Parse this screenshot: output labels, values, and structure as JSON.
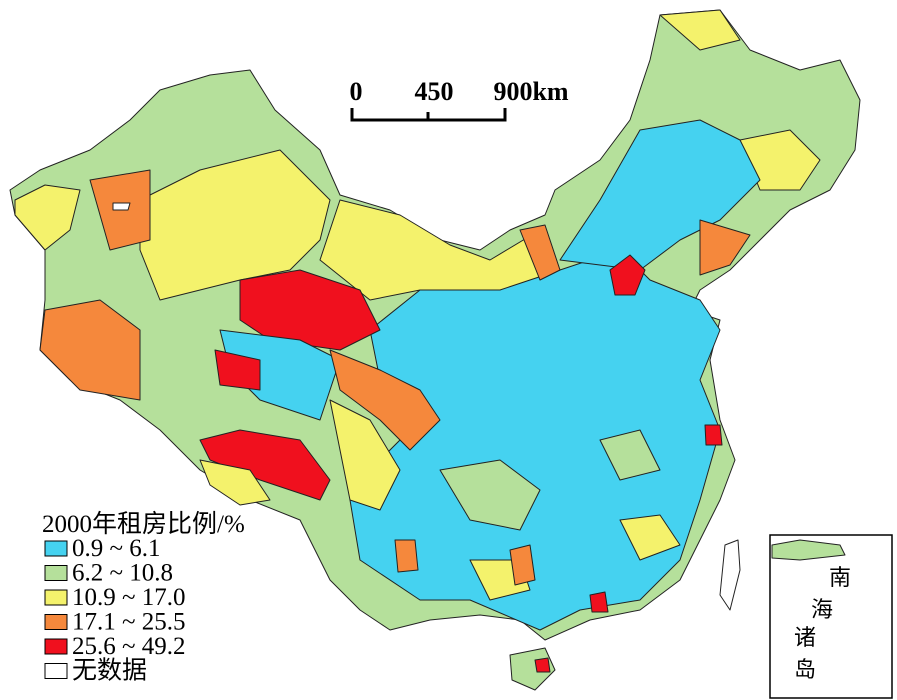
{
  "scale_bar": {
    "labels": [
      "0",
      "450",
      "900km"
    ]
  },
  "legend": {
    "title": "2000年租房比例/%",
    "items": [
      {
        "label": "0.9 ~ 6.1",
        "color": "#45d2f0"
      },
      {
        "label": "6.2 ~ 10.8",
        "color": "#b5e09b"
      },
      {
        "label": "10.9 ~ 17.0",
        "color": "#f4f26c"
      },
      {
        "label": "17.1 ~ 25.5",
        "color": "#f5883c"
      },
      {
        "label": "25.6 ~ 49.2",
        "color": "#f0101e"
      },
      {
        "label": "无数据",
        "color": "#ffffff"
      }
    ]
  },
  "inset": {
    "labels": [
      "南",
      "海",
      "诸",
      "岛"
    ]
  }
}
